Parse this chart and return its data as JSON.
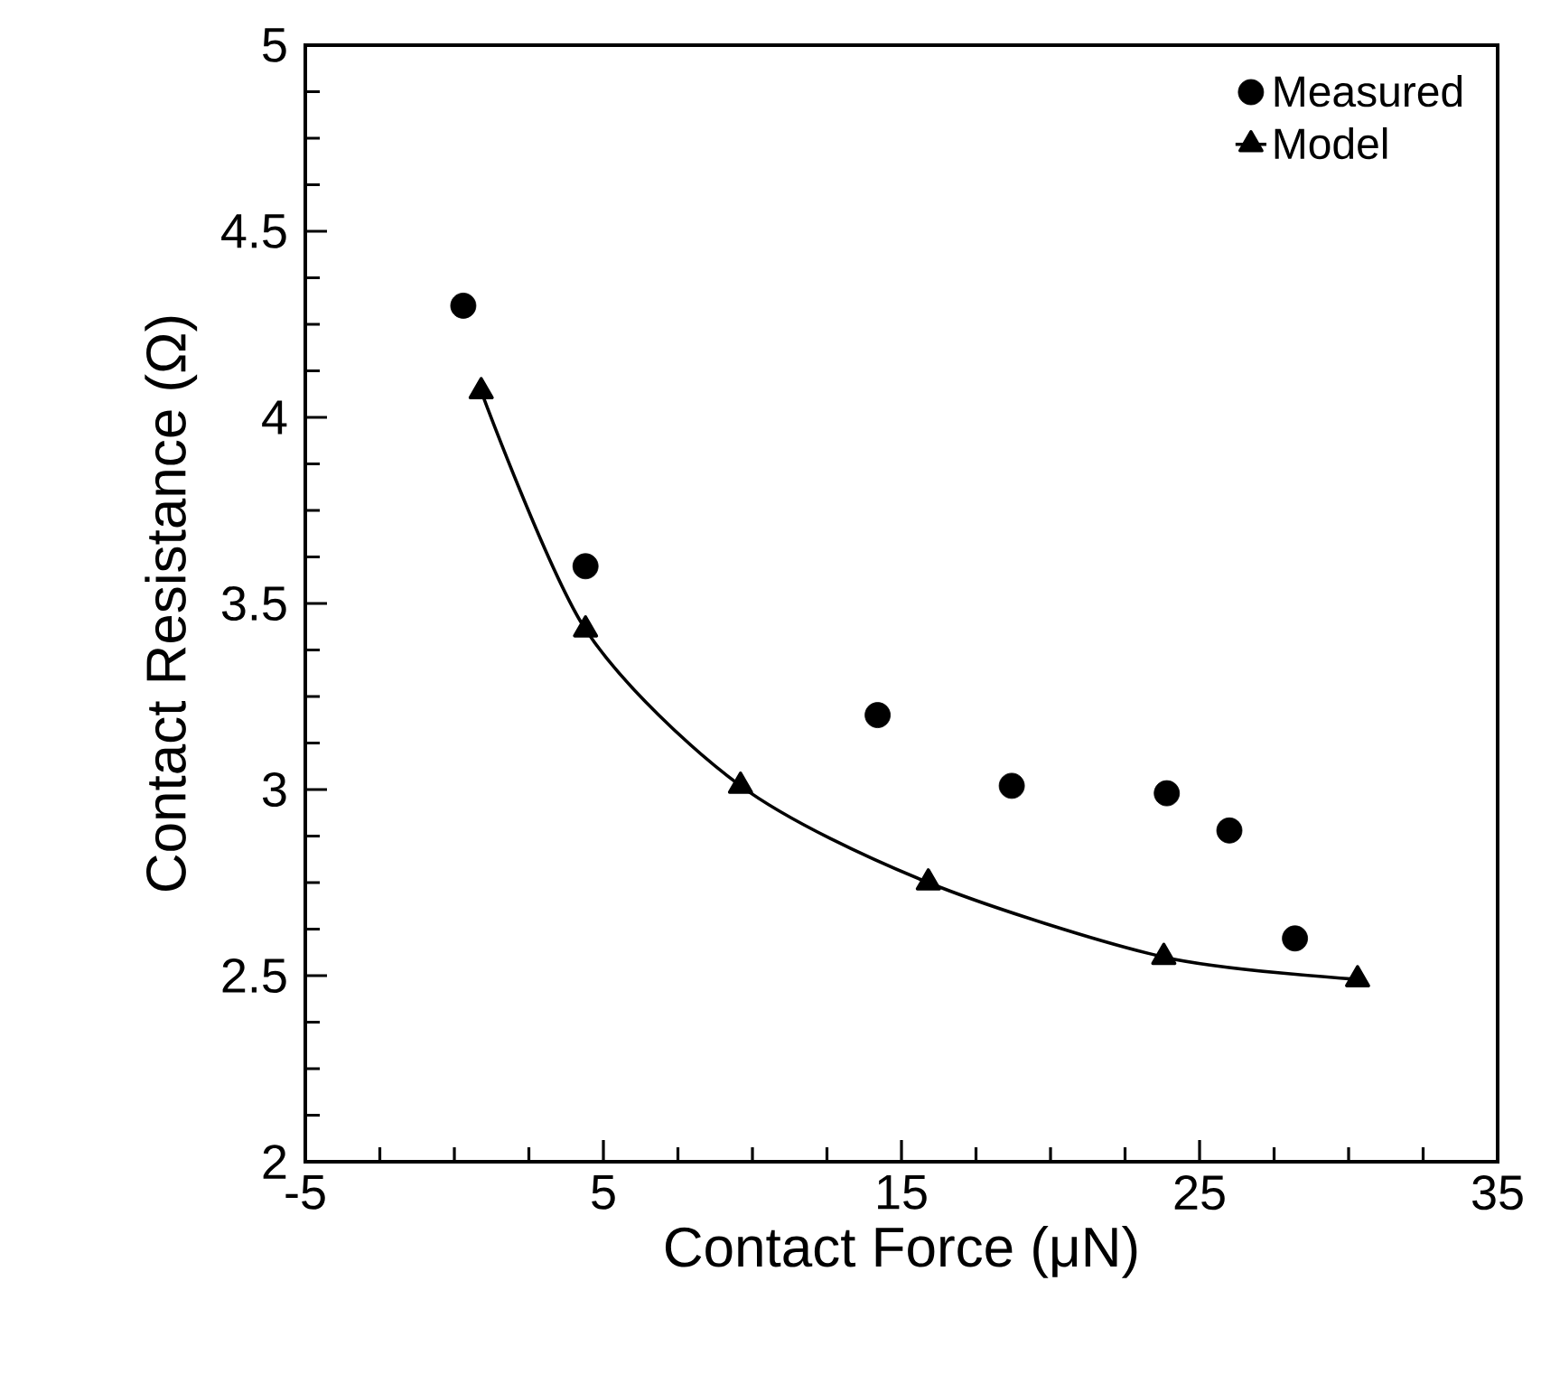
{
  "chart_data": {
    "type": "scatter",
    "xlabel": "Contact Force (μN)",
    "ylabel": "Contact Resistance (Ω)",
    "xlim": [
      -5,
      35
    ],
    "ylim": [
      2,
      5
    ],
    "xticks": [
      -5,
      5,
      15,
      25,
      35
    ],
    "yticks": [
      2,
      2.5,
      3,
      3.5,
      4,
      4.5,
      5
    ],
    "grid": false,
    "legend": "top right",
    "series": [
      {
        "name": "Measured",
        "marker": "circle",
        "color": "#000000",
        "x": [
          0.3,
          4.4,
          14.2,
          18.7,
          23.9,
          26.0,
          28.2
        ],
        "values": [
          4.3,
          3.6,
          3.2,
          3.01,
          2.99,
          2.89,
          2.6
        ]
      },
      {
        "name": "Model",
        "type": "line",
        "marker": "triangle",
        "line_style": "solid",
        "color": "#000000",
        "x": [
          0.9,
          4.4,
          9.6,
          15.9,
          23.8,
          30.3
        ],
        "values": [
          4.07,
          3.43,
          3.01,
          2.75,
          2.55,
          2.49
        ]
      }
    ]
  }
}
